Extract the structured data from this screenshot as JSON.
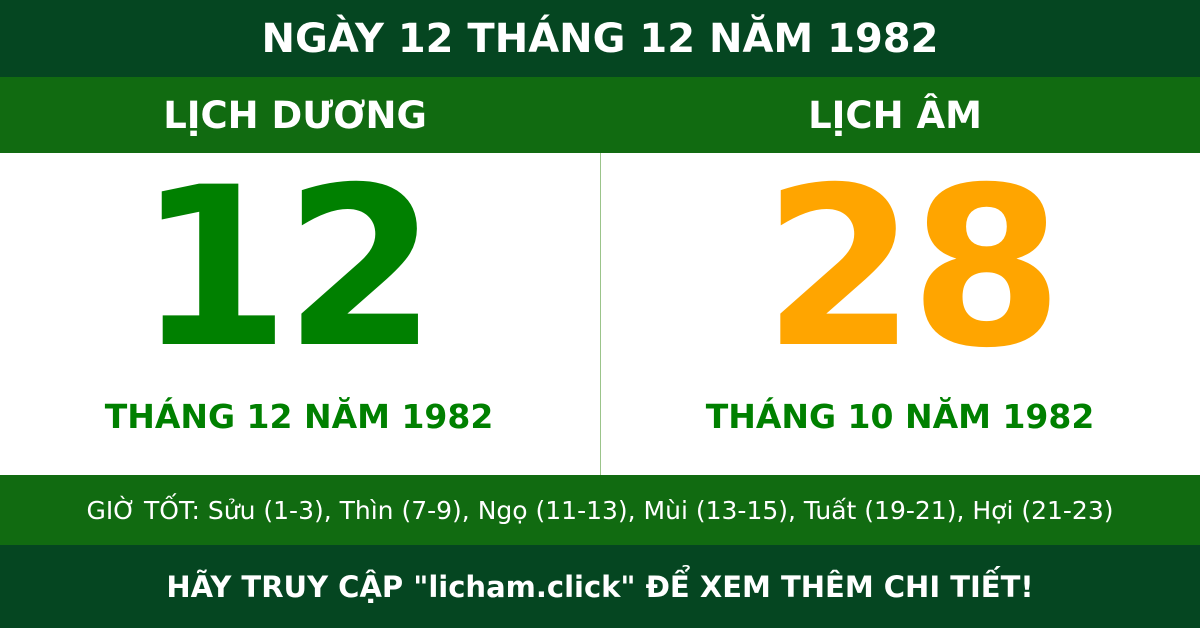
{
  "title": "NGÀY 12 THÁNG 12 NĂM 1982",
  "solar": {
    "heading": "LỊCH DƯƠNG",
    "day": "12",
    "month_year": "THÁNG 12 NĂM 1982",
    "color": "#008000"
  },
  "lunar": {
    "heading": "LỊCH ÂM",
    "day": "28",
    "month_year": "THÁNG 10 NĂM 1982",
    "color": "#ffa500"
  },
  "good_hours": "GIỜ TỐT: Sửu (1-3), Thìn (7-9), Ngọ (11-13), Mùi (13-15), Tuất (19-21), Hợi (21-23)",
  "footer": "HÃY TRUY CẬP \"licham.click\" ĐỂ XEM THÊM CHI TIẾT!",
  "colors": {
    "dark_green": "#054621",
    "band_green": "#116b11"
  }
}
